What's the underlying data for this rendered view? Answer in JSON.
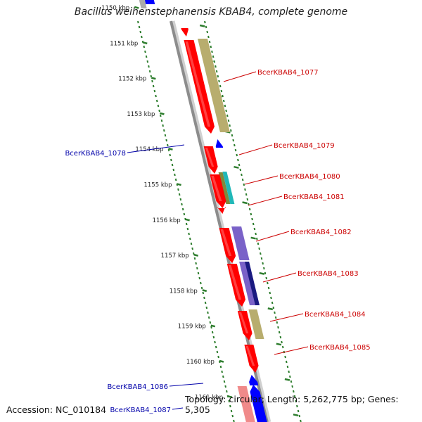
{
  "title": "Bacillus weihenstephanensis KBAB4, complete genome",
  "footer": {
    "accession": "Accession: NC_010184",
    "topology": "Topology: circular; Length: 5,262,775 bp; Genes: 5,305"
  },
  "colors": {
    "backbone": "#8c8c8c",
    "ticks": "#2d7d2d",
    "gene_forward": "#ff0000",
    "gene_reverse": "#0000ff",
    "label_forward": "#cc0000",
    "label_reverse": "#0000aa"
  },
  "scale": {
    "unit": "kbp",
    "tick_labels": [
      "1150 kbp",
      "1151 kbp",
      "1152 kbp",
      "1153 kbp",
      "1154 kbp",
      "1155 kbp",
      "1156 kbp",
      "1157 kbp",
      "1158 kbp",
      "1159 kbp",
      "1160 kbp",
      "1161 kbp"
    ]
  },
  "genes": [
    {
      "label": "BcerKBAB4_1077",
      "strand": "+"
    },
    {
      "label": "BcerKBAB4_1078",
      "strand": "-"
    },
    {
      "label": "BcerKBAB4_1079",
      "strand": "+"
    },
    {
      "label": "BcerKBAB4_1080",
      "strand": "+"
    },
    {
      "label": "BcerKBAB4_1081",
      "strand": "+"
    },
    {
      "label": "BcerKBAB4_1082",
      "strand": "+"
    },
    {
      "label": "BcerKBAB4_1083",
      "strand": "+"
    },
    {
      "label": "BcerKBAB4_1084",
      "strand": "+"
    },
    {
      "label": "BcerKBAB4_1085",
      "strand": "+"
    },
    {
      "label": "BcerKBAB4_1086",
      "strand": "-"
    },
    {
      "label": "BcerKBAB4_1087",
      "strand": "-"
    }
  ]
}
